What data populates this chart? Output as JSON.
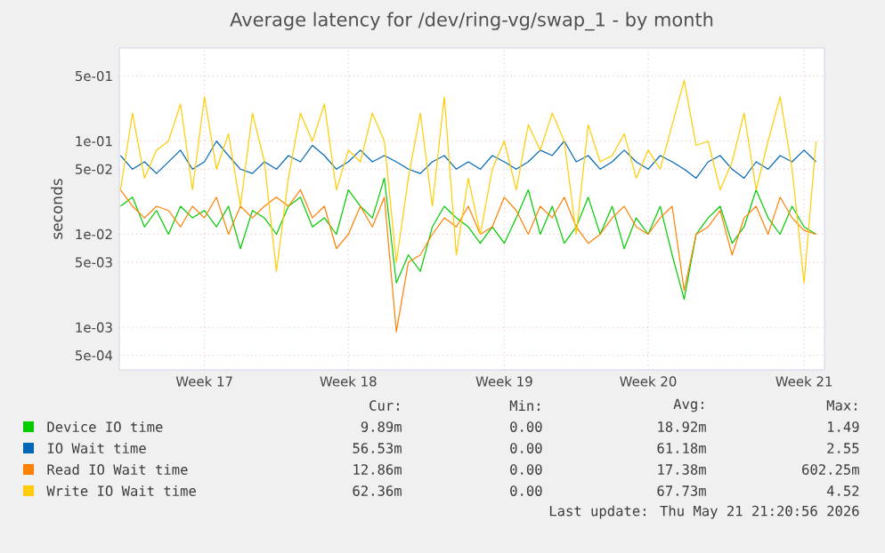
{
  "chart_data": {
    "type": "line",
    "title": "Average latency for /dev/ring-vg/swap_1 - by month",
    "ylabel": "seconds",
    "categories": [
      null,
      null,
      null,
      null,
      null,
      null,
      null,
      "Week 17",
      null,
      null,
      null,
      null,
      null,
      null,
      null,
      null,
      null,
      null,
      null,
      "Week 18",
      null,
      null,
      null,
      null,
      null,
      null,
      null,
      null,
      null,
      null,
      null,
      null,
      "Week 19",
      null,
      null,
      null,
      null,
      null,
      null,
      null,
      null,
      null,
      null,
      null,
      "Week 20",
      null,
      null,
      null,
      null,
      null,
      null,
      null,
      null,
      null,
      null,
      null,
      null,
      "Week 21",
      null
    ],
    "series": [
      {
        "name": "Device IO time",
        "color": "#00cc00",
        "values": [
          0.02,
          0.025,
          0.012,
          0.018,
          0.01,
          0.02,
          0.015,
          0.018,
          0.012,
          0.02,
          0.007,
          0.018,
          0.015,
          0.01,
          0.02,
          0.025,
          0.012,
          0.015,
          0.01,
          0.03,
          0.02,
          0.015,
          0.04,
          0.003,
          0.006,
          0.004,
          0.012,
          0.02,
          0.015,
          0.012,
          0.008,
          0.012,
          0.008,
          0.015,
          0.03,
          0.01,
          0.02,
          0.008,
          0.012,
          0.025,
          0.01,
          0.02,
          0.007,
          0.015,
          0.01,
          0.02,
          0.006,
          0.002,
          0.01,
          0.015,
          0.02,
          0.008,
          0.012,
          0.03,
          0.015,
          0.01,
          0.02,
          0.012,
          0.01
        ]
      },
      {
        "name": "IO Wait time",
        "color": "#0066b3",
        "values": [
          0.07,
          0.05,
          0.06,
          0.045,
          0.06,
          0.08,
          0.05,
          0.06,
          0.1,
          0.07,
          0.05,
          0.045,
          0.06,
          0.05,
          0.07,
          0.06,
          0.09,
          0.07,
          0.05,
          0.06,
          0.08,
          0.06,
          0.07,
          0.06,
          0.05,
          0.045,
          0.06,
          0.07,
          0.05,
          0.06,
          0.05,
          0.07,
          0.06,
          0.05,
          0.06,
          0.08,
          0.07,
          0.1,
          0.06,
          0.07,
          0.05,
          0.06,
          0.08,
          0.06,
          0.05,
          0.07,
          0.06,
          0.05,
          0.04,
          0.06,
          0.07,
          0.05,
          0.04,
          0.06,
          0.05,
          0.07,
          0.06,
          0.08,
          0.06
        ]
      },
      {
        "name": "Read IO Wait time",
        "color": "#ff8000",
        "values": [
          0.03,
          0.02,
          0.015,
          0.02,
          0.018,
          0.012,
          0.02,
          0.015,
          0.025,
          0.01,
          0.02,
          0.015,
          0.02,
          0.025,
          0.02,
          0.03,
          0.015,
          0.02,
          0.007,
          0.01,
          0.02,
          0.012,
          0.025,
          0.0009,
          0.005,
          0.006,
          0.01,
          0.015,
          0.012,
          0.02,
          0.01,
          0.012,
          0.025,
          0.018,
          0.01,
          0.02,
          0.015,
          0.025,
          0.012,
          0.008,
          0.01,
          0.015,
          0.02,
          0.012,
          0.01,
          0.015,
          0.02,
          0.0025,
          0.01,
          0.012,
          0.018,
          0.006,
          0.015,
          0.02,
          0.01,
          0.025,
          0.015,
          0.011,
          0.01
        ]
      },
      {
        "name": "Write IO Wait time",
        "color": "#ffcc00",
        "values": [
          0.03,
          0.2,
          0.04,
          0.08,
          0.1,
          0.25,
          0.03,
          0.3,
          0.05,
          0.12,
          0.02,
          0.2,
          0.06,
          0.004,
          0.04,
          0.2,
          0.1,
          0.25,
          0.03,
          0.08,
          0.06,
          0.2,
          0.1,
          0.005,
          0.04,
          0.2,
          0.02,
          0.3,
          0.006,
          0.04,
          0.01,
          0.05,
          0.1,
          0.03,
          0.15,
          0.08,
          0.2,
          0.1,
          0.01,
          0.15,
          0.06,
          0.07,
          0.12,
          0.04,
          0.08,
          0.05,
          0.15,
          0.45,
          0.09,
          0.1,
          0.03,
          0.06,
          0.2,
          0.03,
          0.1,
          0.3,
          0.05,
          0.003,
          0.1
        ]
      }
    ],
    "log": "y",
    "ylim": [
      0.00035,
      1
    ],
    "yticks": [
      {
        "value": 0.0005,
        "label": "5e-04"
      },
      {
        "value": 0.001,
        "label": "1e-03"
      },
      {
        "value": 0.005,
        "label": "5e-03"
      },
      {
        "value": 0.01,
        "label": "1e-02"
      },
      {
        "value": 0.05,
        "label": "5e-02"
      },
      {
        "value": 0.1,
        "label": "1e-01"
      },
      {
        "value": 0.5,
        "label": "5e-01"
      }
    ],
    "grid": true,
    "legend": "bottom",
    "annotations": [
      "Cur:",
      "Min:",
      "Avg:",
      "Max:",
      "9.89m",
      "0.00",
      "18.92m",
      "1.49",
      "56.53m",
      "0.00",
      "61.18m",
      "2.55",
      "12.86m",
      "0.00",
      "17.38m",
      "602.25m",
      "62.36m",
      "0.00",
      "67.73m",
      "4.52",
      "Last update: Thu May 21 21:20:56 2026"
    ]
  }
}
